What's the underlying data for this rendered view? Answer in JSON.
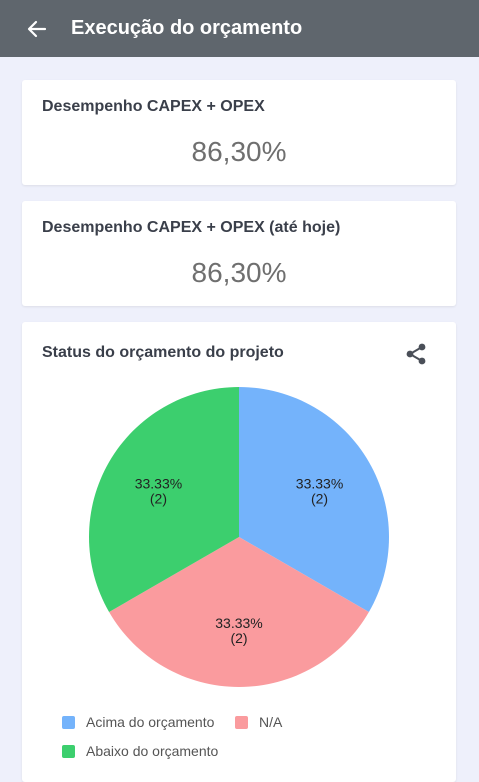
{
  "appbar": {
    "title": "Execução do orçamento",
    "back_icon": "arrow-left-icon"
  },
  "metrics": [
    {
      "label": "Desempenho CAPEX + OPEX",
      "value": "86,30%"
    },
    {
      "label": "Desempenho CAPEX + OPEX (até hoje)",
      "value": "86,30%"
    }
  ],
  "chart_card": {
    "title": "Status do orçamento do projeto",
    "share_icon": "share-icon"
  },
  "chart_data": {
    "type": "pie",
    "slices": [
      {
        "name": "Acima do orçamento",
        "value": 2,
        "percent": "33.33%",
        "count_label": "(2)",
        "color": "#74b3fb"
      },
      {
        "name": "N/A",
        "value": 2,
        "percent": "33.33%",
        "count_label": "(2)",
        "color": "#fa9b9e"
      },
      {
        "name": "Abaixo do orçamento",
        "value": 2,
        "percent": "33.33%",
        "count_label": "(2)",
        "color": "#3ccf6e"
      }
    ],
    "legend_placement": "bottom"
  }
}
